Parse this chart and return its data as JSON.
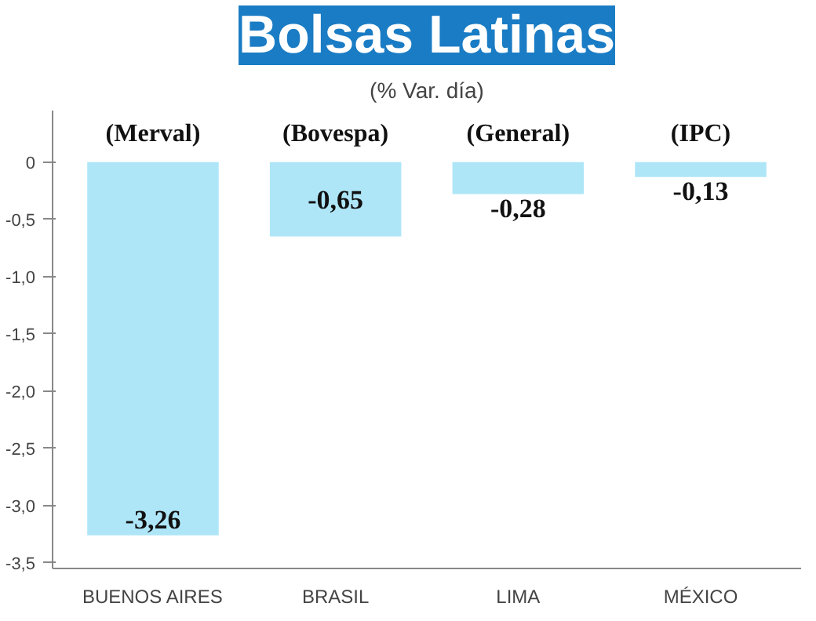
{
  "chart_data": {
    "type": "bar",
    "title": "Bolsas Latinas",
    "subtitle": "(% Var. día)",
    "categories": [
      "BUENOS AIRES",
      "BRASIL",
      "LIMA",
      "MÉXICO"
    ],
    "values": [
      -3.26,
      -0.65,
      -0.28,
      -0.13
    ],
    "value_labels": [
      "-3,26",
      "-0,65",
      "-0,28",
      "-0,13"
    ],
    "color": "#aee6f8",
    "ylim": [
      -3.55,
      0.45
    ],
    "yticks": [
      0,
      {
        "value": -0.5,
        "label": "-0,5"
      },
      {
        "value": -1,
        "label": "-1,0"
      },
      {
        "value": -1.5,
        "label": "-1,5"
      },
      {
        "value": -2,
        "label": "-2,0"
      },
      {
        "value": -2.5,
        "label": "-2,5"
      },
      {
        "value": -3,
        "label": "-3,0"
      },
      {
        "value": -3.5,
        "label": "-3,5"
      }
    ],
    "grid": false,
    "annotations": [
      "(Merval)",
      "(Bovespa)",
      "(General)",
      "(IPC)"
    ]
  }
}
